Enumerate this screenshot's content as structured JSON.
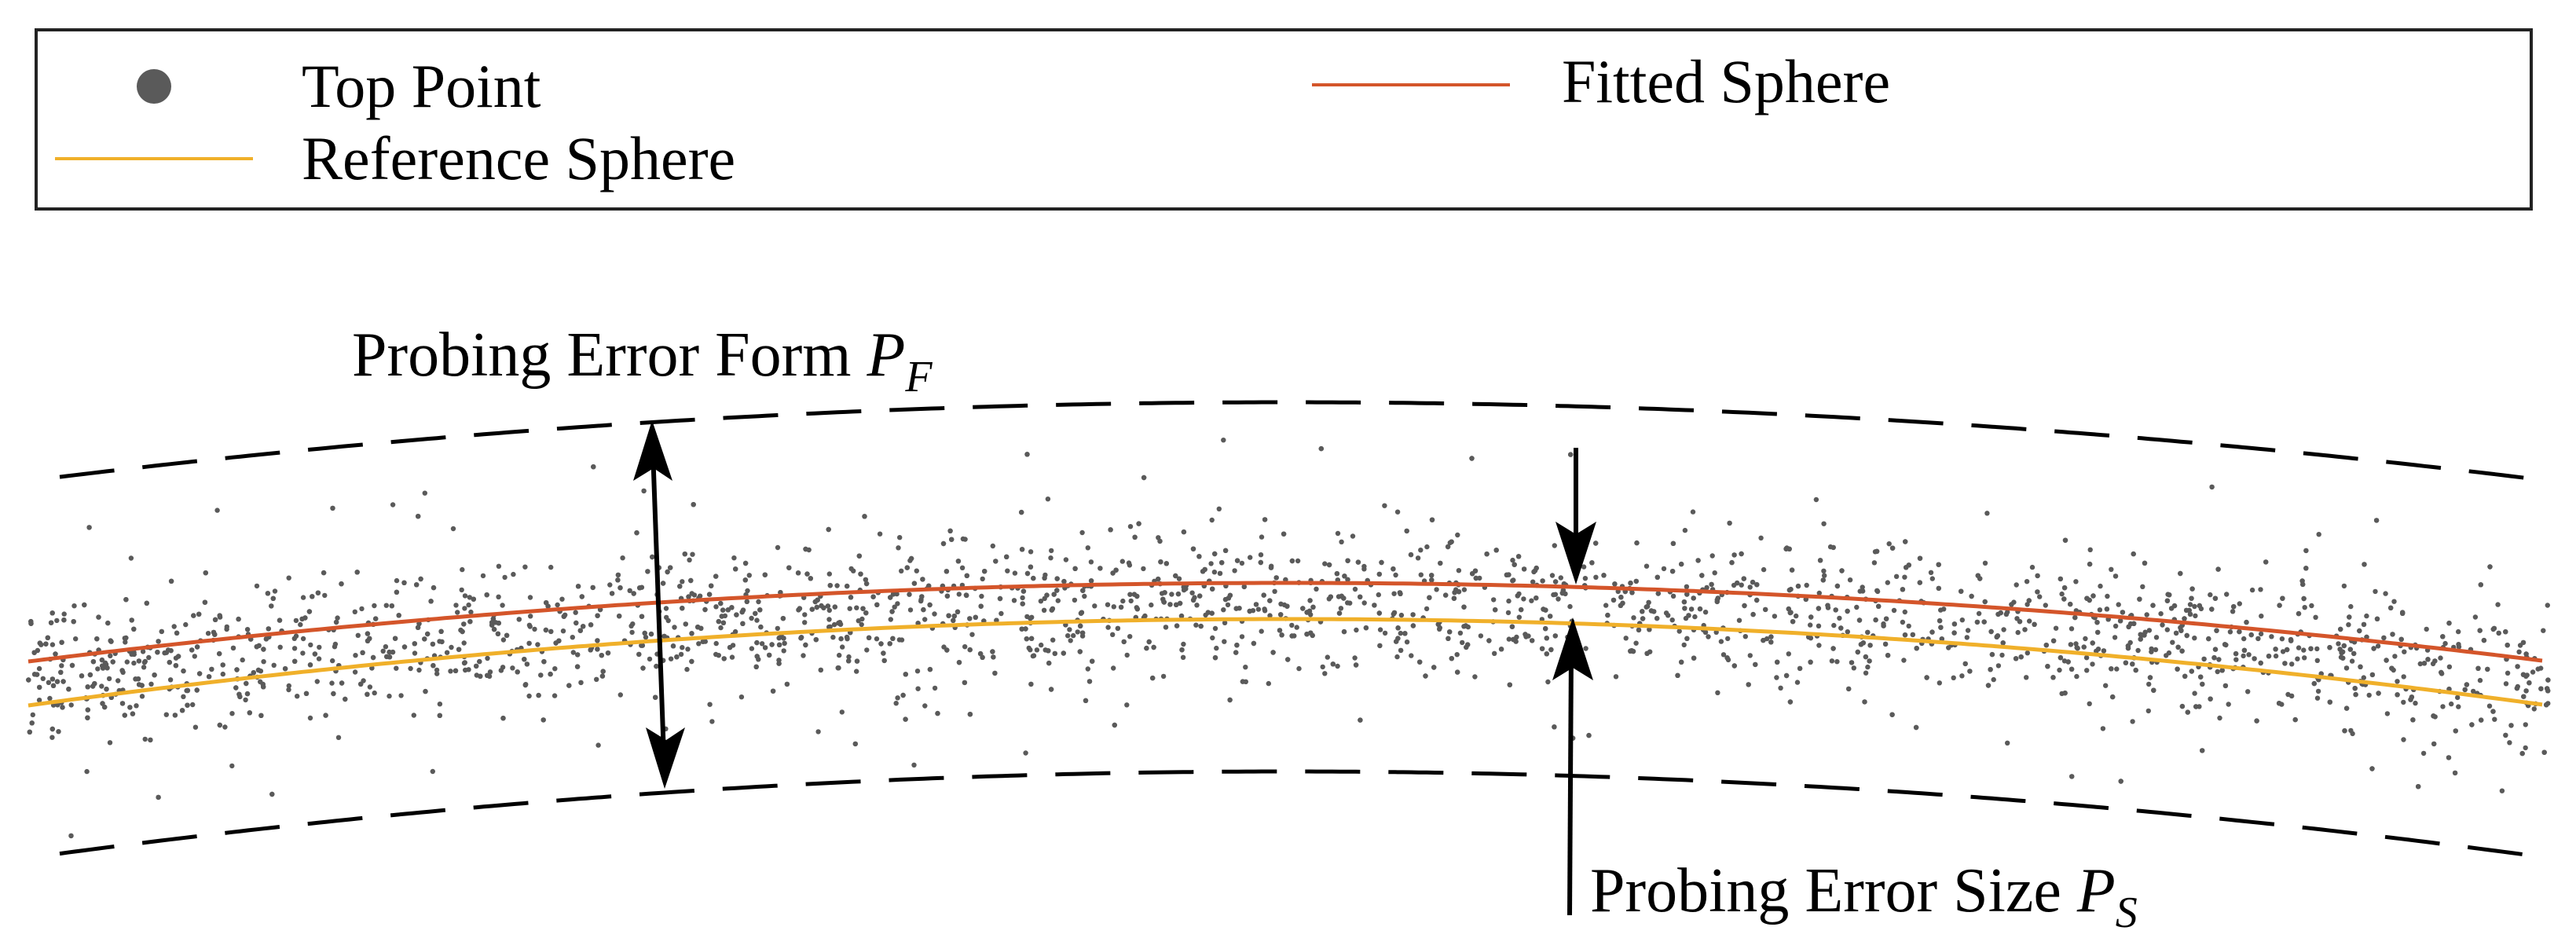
{
  "legend": {
    "top_point_label": "Top Point",
    "fitted_sphere_label": "Fitted Sphere",
    "reference_sphere_label": "Reference Sphere"
  },
  "annotations": {
    "form_error_label": "Probing Error Form ",
    "form_error_symbol": "P",
    "form_error_subscript": "F",
    "size_error_label": "Probing Error Size ",
    "size_error_symbol": "P",
    "size_error_subscript": "S"
  },
  "colors": {
    "point": "#5a5a5a",
    "fitted_sphere": "#d4552a",
    "reference_sphere": "#f0b02a",
    "bounds": "#000000",
    "arrows": "#000000"
  }
}
